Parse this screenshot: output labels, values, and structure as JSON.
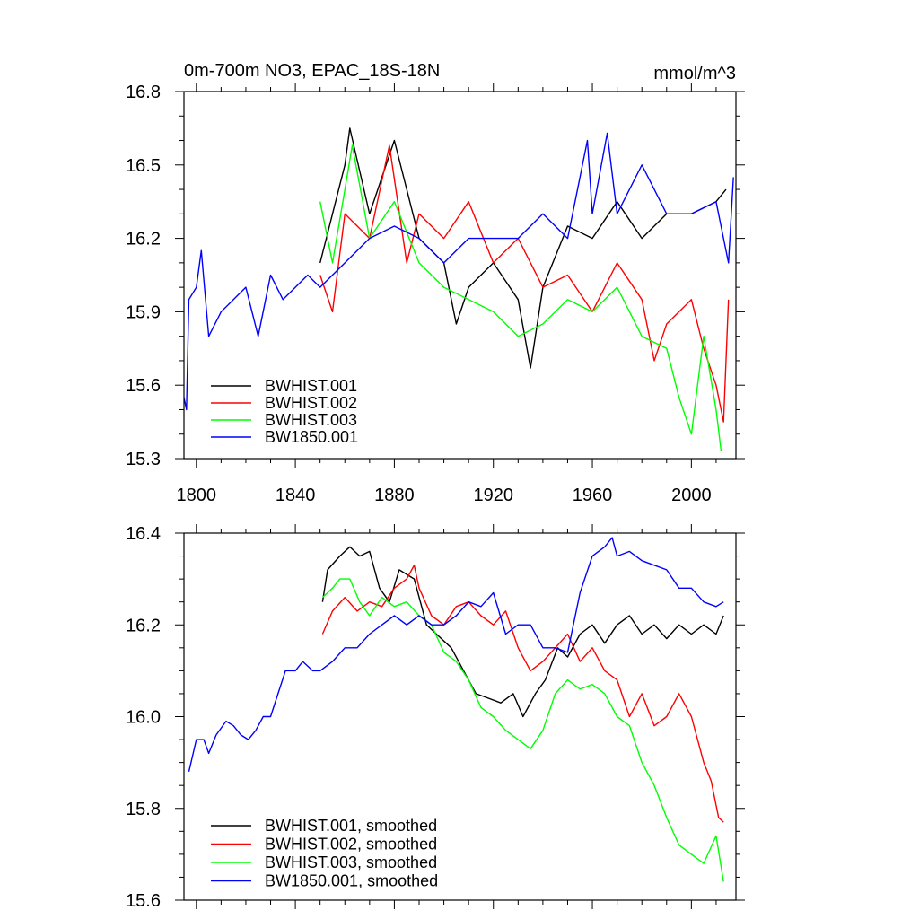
{
  "chart_data": [
    {
      "type": "line",
      "title": "0m-700m NO3, EPAC_18S-18N",
      "units": "mmol/m^3",
      "xlim": [
        1795,
        2018
      ],
      "ylim": [
        15.3,
        16.8
      ],
      "xticks": [
        1800,
        1840,
        1880,
        1920,
        1960,
        2000
      ],
      "yticks": [
        15.3,
        15.6,
        15.9,
        16.2,
        16.5,
        16.8
      ],
      "xtick_labels": [
        "1800",
        "1840",
        "1880",
        "1920",
        "1960",
        "2000"
      ],
      "ytick_labels": [
        "15.3",
        "15.6",
        "15.9",
        "16.2",
        "16.5",
        "16.8"
      ],
      "legend_location": "bottom-left",
      "series": [
        {
          "name": "BWHIST.001",
          "color": "#000000",
          "x": [
            1850,
            1860,
            1862,
            1870,
            1875,
            1880,
            1890,
            1900,
            1905,
            1910,
            1920,
            1930,
            1935,
            1940,
            1950,
            1960,
            1970,
            1980,
            1990,
            2000,
            2010,
            2014
          ],
          "y": [
            16.1,
            16.5,
            16.65,
            16.3,
            16.45,
            16.6,
            16.2,
            16.1,
            15.85,
            16.0,
            16.1,
            15.95,
            15.67,
            16.0,
            16.25,
            16.2,
            16.35,
            16.2,
            16.3,
            16.3,
            16.35,
            16.4
          ]
        },
        {
          "name": "BWHIST.002",
          "color": "#ff0000",
          "x": [
            1850,
            1855,
            1860,
            1870,
            1878,
            1885,
            1890,
            1900,
            1910,
            1920,
            1930,
            1940,
            1950,
            1960,
            1970,
            1980,
            1985,
            1990,
            2000,
            2005,
            2010,
            2013,
            2015
          ],
          "y": [
            16.05,
            15.9,
            16.3,
            16.2,
            16.58,
            16.1,
            16.3,
            16.2,
            16.35,
            16.1,
            16.2,
            16.0,
            16.05,
            15.9,
            16.1,
            15.95,
            15.7,
            15.85,
            15.95,
            15.75,
            15.6,
            15.45,
            15.95
          ]
        },
        {
          "name": "BWHIST.003",
          "color": "#00ff00",
          "x": [
            1850,
            1855,
            1860,
            1863,
            1870,
            1880,
            1890,
            1900,
            1910,
            1920,
            1930,
            1940,
            1950,
            1960,
            1970,
            1980,
            1990,
            1995,
            2000,
            2005,
            2010,
            2012
          ],
          "y": [
            16.35,
            16.1,
            16.4,
            16.58,
            16.2,
            16.35,
            16.1,
            16.0,
            15.95,
            15.9,
            15.8,
            15.85,
            15.95,
            15.9,
            16.0,
            15.8,
            15.75,
            15.55,
            15.4,
            15.8,
            15.5,
            15.33
          ]
        },
        {
          "name": "BW1850.001",
          "color": "#0000ff",
          "x": [
            1795,
            1796,
            1797,
            1800,
            1802,
            1805,
            1810,
            1815,
            1820,
            1825,
            1830,
            1835,
            1840,
            1845,
            1850,
            1860,
            1870,
            1880,
            1890,
            1900,
            1910,
            1920,
            1930,
            1940,
            1950,
            1958,
            1960,
            1966,
            1970,
            1980,
            1990,
            2000,
            2010,
            2015,
            2017
          ],
          "y": [
            15.55,
            15.5,
            15.95,
            16.0,
            16.15,
            15.8,
            15.9,
            15.95,
            16.0,
            15.8,
            16.05,
            15.95,
            16.0,
            16.05,
            16.0,
            16.1,
            16.2,
            16.25,
            16.2,
            16.1,
            16.2,
            16.2,
            16.2,
            16.3,
            16.2,
            16.6,
            16.3,
            16.63,
            16.3,
            16.5,
            16.3,
            16.3,
            16.35,
            16.1,
            16.45
          ]
        }
      ]
    },
    {
      "type": "line",
      "xlim": [
        1795,
        2018
      ],
      "ylim": [
        15.6,
        16.4
      ],
      "xticks": [
        1800,
        1840,
        1880,
        1920,
        1960,
        2000
      ],
      "yticks": [
        15.6,
        15.8,
        16.0,
        16.2,
        16.4
      ],
      "ytick_labels": [
        "15.6",
        "15.8",
        "16.0",
        "16.2",
        "16.4"
      ],
      "legend_location": "bottom-left",
      "series": [
        {
          "name": "BWHIST.001, smoothed",
          "color": "#000000",
          "x": [
            1851,
            1853,
            1858,
            1862,
            1866,
            1870,
            1874,
            1878,
            1882,
            1888,
            1893,
            1897,
            1903,
            1908,
            1913,
            1918,
            1923,
            1928,
            1932,
            1937,
            1941,
            1946,
            1950,
            1955,
            1960,
            1965,
            1970,
            1975,
            1980,
            1985,
            1990,
            1995,
            2000,
            2005,
            2010,
            2013
          ],
          "y": [
            16.25,
            16.32,
            16.35,
            16.37,
            16.35,
            16.36,
            16.28,
            16.25,
            16.32,
            16.3,
            16.2,
            16.18,
            16.15,
            16.1,
            16.05,
            16.04,
            16.03,
            16.05,
            16.0,
            16.05,
            16.08,
            16.15,
            16.13,
            16.18,
            16.2,
            16.16,
            16.2,
            16.22,
            16.18,
            16.2,
            16.17,
            16.2,
            16.18,
            16.2,
            16.18,
            16.22
          ]
        },
        {
          "name": "BWHIST.002, smoothed",
          "color": "#ff0000",
          "x": [
            1851,
            1855,
            1860,
            1865,
            1870,
            1875,
            1880,
            1885,
            1888,
            1890,
            1895,
            1900,
            1905,
            1910,
            1915,
            1920,
            1925,
            1930,
            1935,
            1940,
            1945,
            1950,
            1955,
            1960,
            1965,
            1970,
            1975,
            1980,
            1985,
            1990,
            1995,
            2000,
            2005,
            2008,
            2011,
            2013
          ],
          "y": [
            16.18,
            16.23,
            16.26,
            16.23,
            16.25,
            16.24,
            16.28,
            16.3,
            16.33,
            16.28,
            16.22,
            16.2,
            16.24,
            16.25,
            16.22,
            16.2,
            16.23,
            16.15,
            16.1,
            16.12,
            16.15,
            16.18,
            16.12,
            16.15,
            16.1,
            16.08,
            16.0,
            16.05,
            15.98,
            16.0,
            16.05,
            16.0,
            15.9,
            15.86,
            15.78,
            15.77
          ]
        },
        {
          "name": "BWHIST.003, smoothed",
          "color": "#00ff00",
          "x": [
            1851,
            1855,
            1858,
            1862,
            1866,
            1870,
            1875,
            1880,
            1885,
            1890,
            1895,
            1900,
            1905,
            1910,
            1915,
            1920,
            1925,
            1930,
            1935,
            1940,
            1945,
            1950,
            1955,
            1960,
            1965,
            1970,
            1975,
            1980,
            1985,
            1990,
            1995,
            2000,
            2005,
            2010,
            2013
          ],
          "y": [
            16.26,
            16.28,
            16.3,
            16.3,
            16.25,
            16.22,
            16.26,
            16.24,
            16.25,
            16.22,
            16.2,
            16.14,
            16.12,
            16.08,
            16.02,
            16.0,
            15.97,
            15.95,
            15.93,
            15.97,
            16.05,
            16.08,
            16.06,
            16.07,
            16.05,
            16.0,
            15.98,
            15.9,
            15.85,
            15.78,
            15.72,
            15.7,
            15.68,
            15.74,
            15.64
          ]
        },
        {
          "name": "BW1850.001, smoothed",
          "color": "#0000ff",
          "x": [
            1797,
            1800,
            1803,
            1805,
            1808,
            1812,
            1815,
            1818,
            1821,
            1824,
            1827,
            1830,
            1833,
            1836,
            1840,
            1843,
            1847,
            1850,
            1855,
            1860,
            1865,
            1870,
            1875,
            1880,
            1885,
            1890,
            1895,
            1900,
            1905,
            1910,
            1915,
            1920,
            1925,
            1930,
            1935,
            1940,
            1945,
            1950,
            1955,
            1960,
            1965,
            1968,
            1970,
            1975,
            1980,
            1985,
            1990,
            1995,
            2000,
            2005,
            2010,
            2013
          ],
          "y": [
            15.88,
            15.95,
            15.95,
            15.92,
            15.96,
            15.99,
            15.98,
            15.96,
            15.95,
            15.97,
            16.0,
            16.0,
            16.05,
            16.1,
            16.1,
            16.12,
            16.1,
            16.1,
            16.12,
            16.15,
            16.15,
            16.18,
            16.2,
            16.22,
            16.2,
            16.22,
            16.2,
            16.2,
            16.22,
            16.25,
            16.24,
            16.27,
            16.18,
            16.2,
            16.2,
            16.15,
            16.15,
            16.14,
            16.27,
            16.35,
            16.37,
            16.39,
            16.35,
            16.36,
            16.34,
            16.33,
            16.32,
            16.28,
            16.28,
            16.25,
            16.24,
            16.25
          ]
        }
      ]
    }
  ]
}
